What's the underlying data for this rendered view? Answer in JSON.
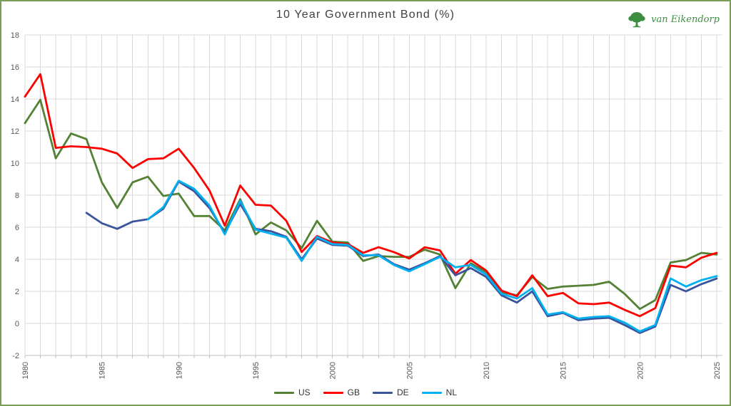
{
  "page": {
    "border_color": "#7b9e56",
    "background": "#ffffff"
  },
  "header": {
    "logo_text": "van Eikendorp",
    "logo_color": "#3e8e41"
  },
  "chart_data": {
    "type": "line",
    "title": "10 Year Government Bond (%)",
    "x_start": 1980,
    "x_end": 2025,
    "x_tick_labels": [
      "1980",
      "1985",
      "1990",
      "1995",
      "2000",
      "2005",
      "2010",
      "2015",
      "2020",
      "2025"
    ],
    "y_ticks": [
      18,
      16,
      14,
      12,
      10,
      8,
      6,
      4,
      2,
      0,
      -2
    ],
    "ylim": [
      -2,
      18
    ],
    "grid": true,
    "legend_position": "bottom",
    "colors": {
      "gridline": "#d9d9d9",
      "axis": "#bfbfbf",
      "tick_text": "#595959",
      "title_text": "#3f3f3f"
    },
    "series": [
      {
        "name": "US",
        "color": "#548235",
        "values": [
          12.5,
          13.95,
          10.3,
          11.85,
          11.5,
          8.8,
          7.2,
          8.8,
          9.15,
          7.95,
          8.1,
          6.7,
          6.7,
          5.8,
          7.75,
          5.55,
          6.3,
          5.8,
          4.7,
          6.4,
          5.1,
          5.05,
          3.9,
          4.2,
          4.15,
          4.15,
          4.6,
          4.3,
          2.2,
          3.75,
          3.2,
          1.95,
          1.75,
          2.9,
          2.15,
          2.3,
          2.35,
          2.4,
          2.6,
          1.85,
          0.9,
          1.45,
          3.8,
          3.95,
          4.4,
          4.3
        ]
      },
      {
        "name": "GB",
        "color": "#fe0000",
        "values": [
          14.15,
          15.55,
          10.95,
          11.05,
          11.0,
          10.9,
          10.6,
          9.7,
          10.25,
          10.3,
          10.9,
          9.7,
          8.3,
          6.1,
          8.6,
          7.4,
          7.35,
          6.4,
          4.45,
          5.45,
          5.05,
          4.95,
          4.4,
          4.75,
          4.45,
          4.05,
          4.75,
          4.55,
          3.1,
          3.95,
          3.3,
          2.05,
          1.7,
          3.0,
          1.7,
          1.9,
          1.25,
          1.2,
          1.3,
          0.85,
          0.45,
          0.95,
          3.6,
          3.5,
          4.1,
          4.4
        ]
      },
      {
        "name": "DE",
        "color": "#3a539b",
        "values": [
          null,
          null,
          null,
          null,
          6.9,
          6.25,
          5.9,
          6.35,
          6.5,
          7.15,
          8.85,
          8.25,
          7.2,
          5.65,
          7.45,
          5.9,
          5.75,
          5.4,
          4.0,
          5.3,
          4.9,
          4.85,
          4.2,
          4.3,
          3.7,
          3.35,
          3.75,
          4.2,
          3.0,
          3.45,
          2.9,
          1.75,
          1.3,
          2.0,
          0.45,
          0.65,
          0.2,
          0.3,
          0.35,
          -0.1,
          -0.6,
          -0.2,
          2.4,
          2.0,
          2.45,
          2.8
        ]
      },
      {
        "name": "NL",
        "color": "#00b0f0",
        "values": [
          null,
          null,
          null,
          null,
          null,
          null,
          null,
          null,
          6.5,
          7.25,
          8.9,
          8.4,
          7.35,
          5.55,
          7.65,
          5.85,
          5.6,
          5.35,
          3.9,
          5.4,
          4.95,
          4.9,
          4.25,
          4.25,
          3.65,
          3.25,
          3.7,
          4.15,
          3.5,
          3.65,
          3.05,
          1.85,
          1.55,
          2.2,
          0.55,
          0.7,
          0.3,
          0.4,
          0.45,
          0.05,
          -0.5,
          -0.1,
          2.8,
          2.3,
          2.7,
          2.95
        ]
      }
    ]
  }
}
